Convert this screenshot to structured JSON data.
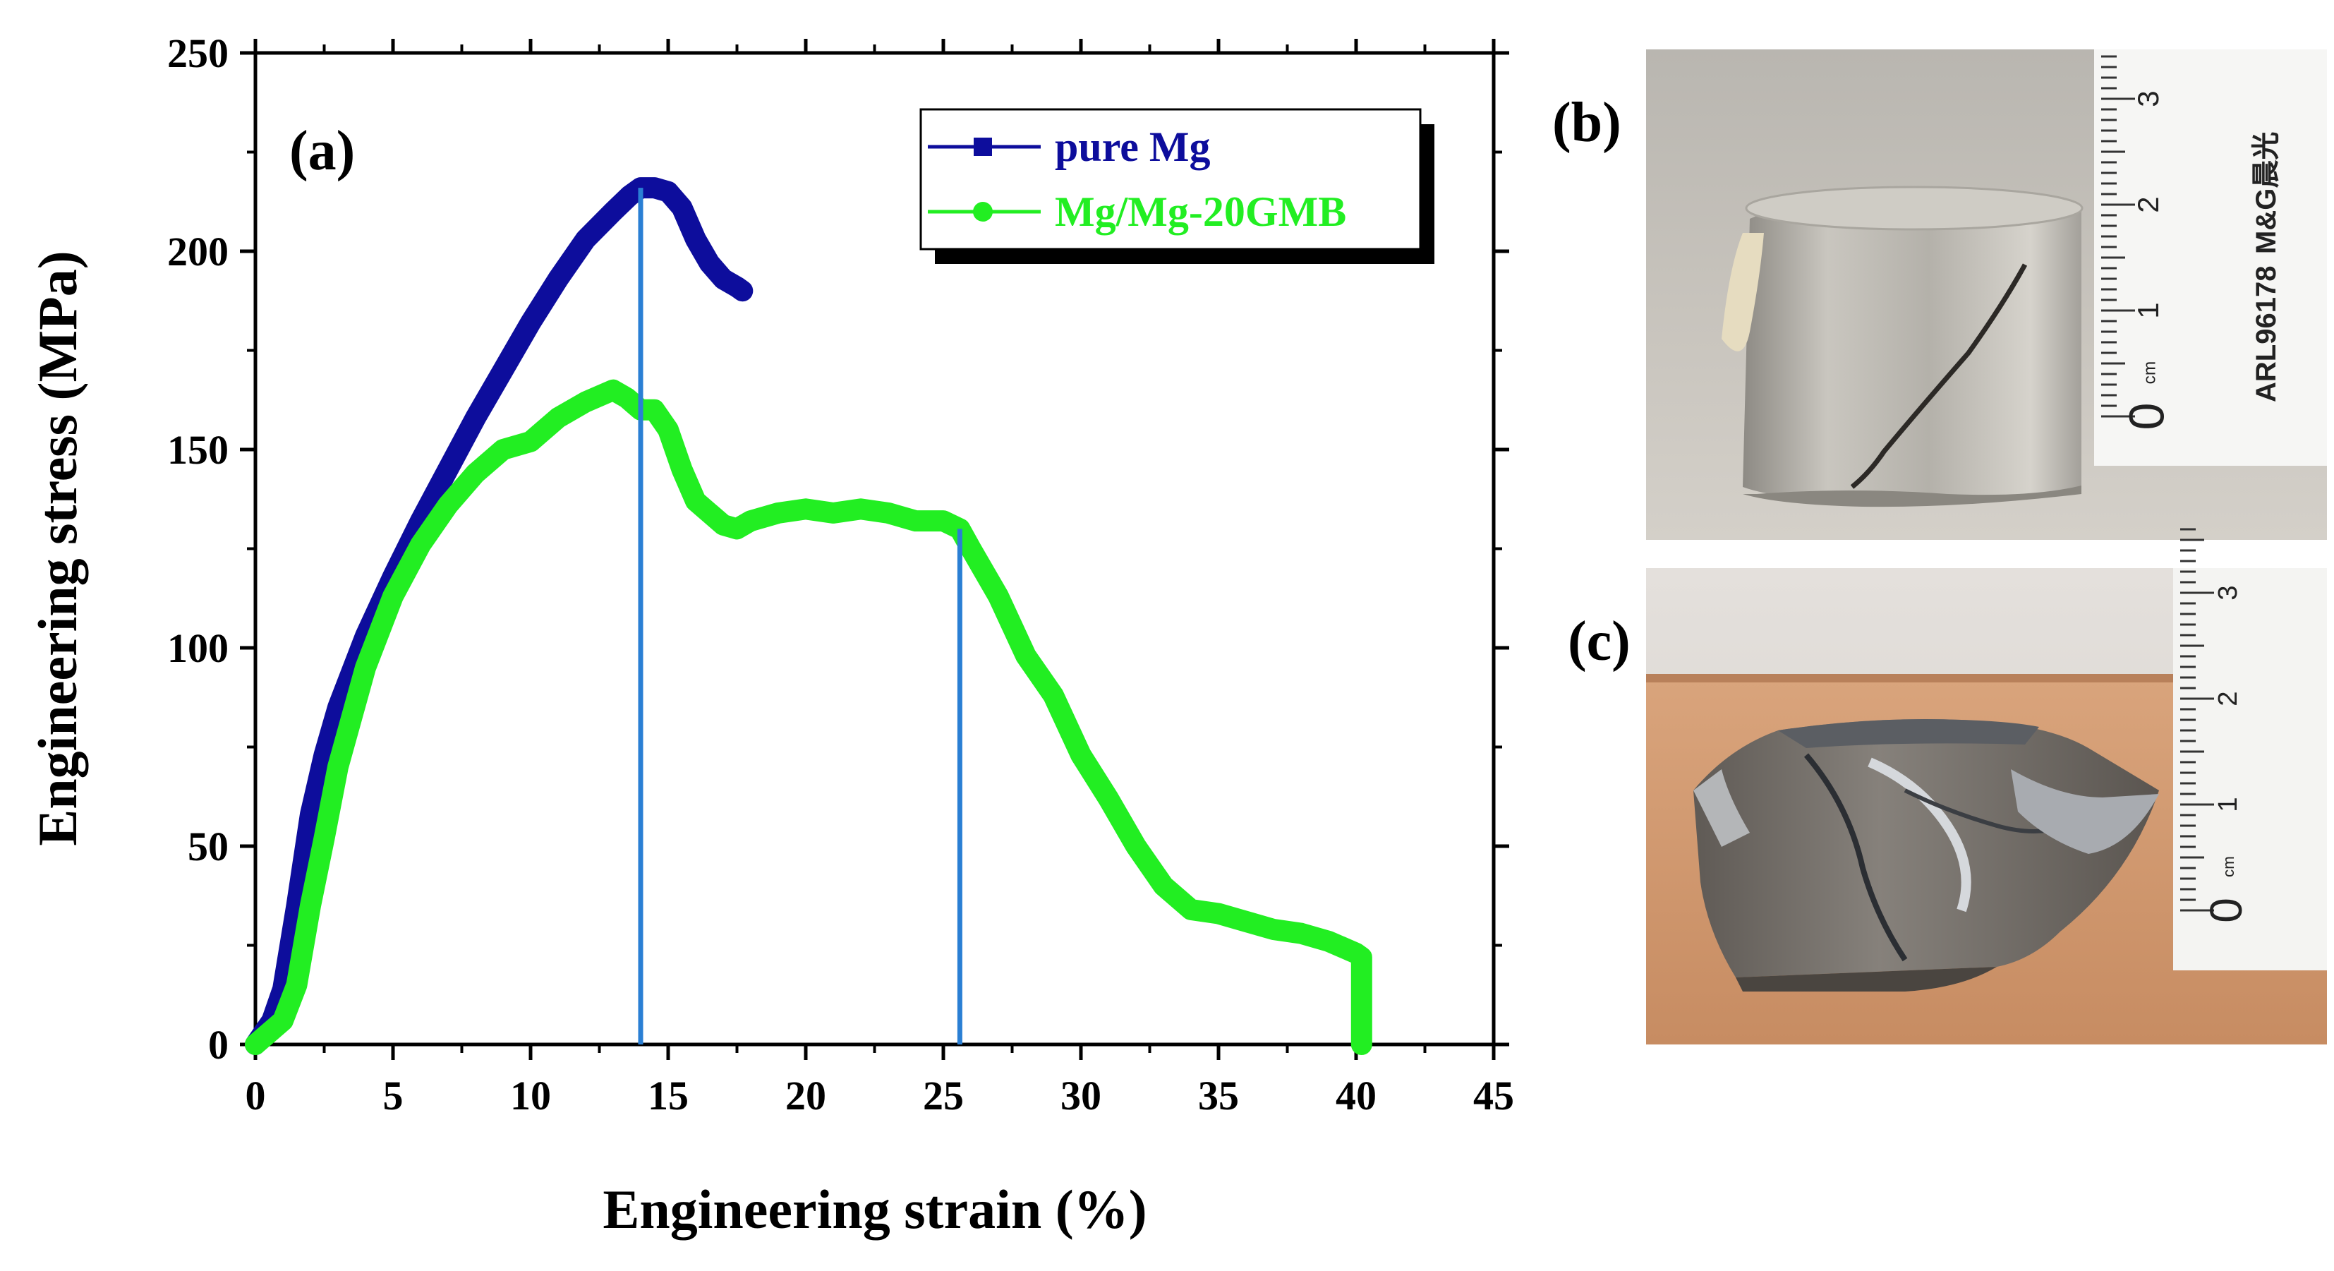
{
  "chart_data": {
    "type": "line",
    "title": "",
    "xlabel": "Engineering strain (%)",
    "ylabel": "Engineering stress (MPa)",
    "xlim": [
      0,
      45
    ],
    "ylim": [
      0,
      250
    ],
    "x_ticks": [
      "0",
      "5",
      "10",
      "15",
      "20",
      "25",
      "30",
      "35",
      "40",
      "45"
    ],
    "y_ticks": [
      "0",
      "50",
      "100",
      "150",
      "200",
      "250"
    ],
    "panel_label": "(a)",
    "legend_position": "top-right",
    "series": [
      {
        "name": "pure Mg",
        "color": "#0d0d9c",
        "marker": "square",
        "points": [
          [
            0,
            0
          ],
          [
            0.3,
            3
          ],
          [
            0.6,
            6
          ],
          [
            1,
            14
          ],
          [
            1.5,
            35
          ],
          [
            2,
            58
          ],
          [
            2.5,
            73
          ],
          [
            3,
            85
          ],
          [
            4,
            103
          ],
          [
            5,
            118
          ],
          [
            6,
            132
          ],
          [
            7,
            145
          ],
          [
            8,
            158
          ],
          [
            9,
            170
          ],
          [
            10,
            182
          ],
          [
            11,
            193
          ],
          [
            12,
            203
          ],
          [
            13,
            210
          ],
          [
            13.6,
            214
          ],
          [
            14,
            216
          ],
          [
            14.5,
            216
          ],
          [
            15,
            215
          ],
          [
            15.5,
            211
          ],
          [
            16,
            203
          ],
          [
            16.5,
            197
          ],
          [
            17,
            193
          ],
          [
            17.5,
            191
          ],
          [
            17.7,
            190
          ]
        ]
      },
      {
        "name": "Mg/Mg-20GMB",
        "color": "#22ee22",
        "marker": "circle",
        "points": [
          [
            0,
            0
          ],
          [
            0.5,
            3
          ],
          [
            1,
            6
          ],
          [
            1.5,
            15
          ],
          [
            2,
            35
          ],
          [
            2.5,
            52
          ],
          [
            3,
            70
          ],
          [
            4,
            95
          ],
          [
            5,
            113
          ],
          [
            6,
            126
          ],
          [
            7,
            136
          ],
          [
            8,
            144
          ],
          [
            9,
            150
          ],
          [
            10,
            152
          ],
          [
            11,
            158
          ],
          [
            12,
            162
          ],
          [
            13,
            165
          ],
          [
            13.5,
            163
          ],
          [
            14,
            160
          ],
          [
            14.5,
            160
          ],
          [
            15,
            155
          ],
          [
            15.5,
            145
          ],
          [
            16,
            137
          ],
          [
            16.5,
            134
          ],
          [
            17,
            131
          ],
          [
            17.5,
            130
          ],
          [
            18,
            132
          ],
          [
            19,
            134
          ],
          [
            20,
            135
          ],
          [
            21,
            134
          ],
          [
            22,
            135
          ],
          [
            23,
            134
          ],
          [
            24,
            132
          ],
          [
            25,
            132
          ],
          [
            25.6,
            130
          ],
          [
            26,
            125
          ],
          [
            27,
            113
          ],
          [
            28,
            98
          ],
          [
            29,
            88
          ],
          [
            30,
            73
          ],
          [
            31,
            62
          ],
          [
            32,
            50
          ],
          [
            33,
            40
          ],
          [
            34,
            34
          ],
          [
            35,
            33
          ],
          [
            36,
            31
          ],
          [
            37,
            29
          ],
          [
            38,
            28
          ],
          [
            39,
            26
          ],
          [
            40,
            23
          ],
          [
            40.2,
            22
          ],
          [
            40.2,
            0
          ]
        ]
      }
    ],
    "vertical_lines": [
      {
        "x": 14,
        "y": 216
      },
      {
        "x": 25.6,
        "y": 130
      }
    ],
    "vline_color": "#2a7fd4"
  },
  "photos": {
    "b": {
      "label": "(b)",
      "ruler_brand": "M&G晨光",
      "ruler_code": "ARL96178",
      "ruler_unit": "cm",
      "ruler_numbers": [
        "0",
        "1",
        "2",
        "3"
      ]
    },
    "c": {
      "label": "(c)",
      "ruler_unit": "cm",
      "ruler_numbers": [
        "0",
        "1",
        "2",
        "3"
      ]
    }
  }
}
